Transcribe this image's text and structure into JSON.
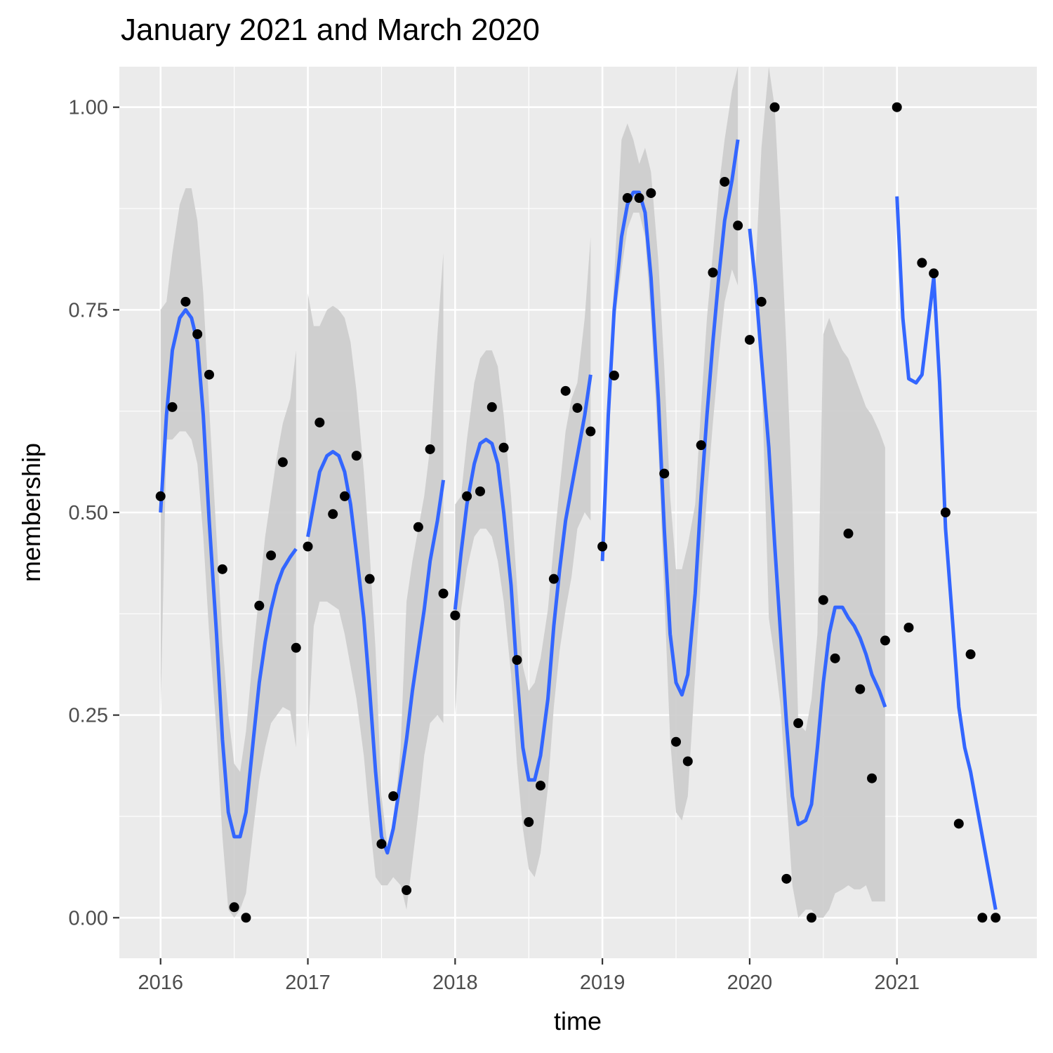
{
  "chart_data": {
    "type": "scatter",
    "title": "January 2021 and March 2020",
    "xlabel": "time",
    "ylabel": "membership",
    "xlim": [
      2015.72,
      2021.95
    ],
    "ylim": [
      -0.05,
      1.05
    ],
    "x_ticks": [
      2016,
      2017,
      2018,
      2019,
      2020,
      2021
    ],
    "x_tick_labels": [
      "2016",
      "2017",
      "2018",
      "2019",
      "2020",
      "2021"
    ],
    "y_ticks": [
      0.0,
      0.25,
      0.5,
      0.75,
      1.0
    ],
    "y_tick_labels": [
      "0.00",
      "0.25",
      "0.50",
      "0.75",
      "1.00"
    ],
    "grid": true,
    "colors": {
      "panel": "#ebebeb",
      "grid": "#ffffff",
      "points": "#000000",
      "smooth": "#3366ff",
      "ribbon": "#cccccc"
    },
    "points": [
      [
        2016.0,
        0.52
      ],
      [
        2016.08,
        0.63
      ],
      [
        2016.17,
        0.76
      ],
      [
        2016.25,
        0.72
      ],
      [
        2016.33,
        0.67
      ],
      [
        2016.42,
        0.43
      ],
      [
        2016.5,
        0.013
      ],
      [
        2016.58,
        0.0
      ],
      [
        2016.67,
        0.385
      ],
      [
        2016.75,
        0.447
      ],
      [
        2016.83,
        0.562
      ],
      [
        2016.92,
        0.333
      ],
      [
        2017.0,
        0.458
      ],
      [
        2017.08,
        0.611
      ],
      [
        2017.17,
        0.498
      ],
      [
        2017.25,
        0.52
      ],
      [
        2017.33,
        0.57
      ],
      [
        2017.42,
        0.418
      ],
      [
        2017.5,
        0.091
      ],
      [
        2017.58,
        0.15
      ],
      [
        2017.67,
        0.034
      ],
      [
        2017.75,
        0.482
      ],
      [
        2017.83,
        0.578
      ],
      [
        2017.92,
        0.4
      ],
      [
        2018.0,
        0.373
      ],
      [
        2018.08,
        0.52
      ],
      [
        2018.17,
        0.526
      ],
      [
        2018.25,
        0.63
      ],
      [
        2018.33,
        0.58
      ],
      [
        2018.42,
        0.318
      ],
      [
        2018.5,
        0.118
      ],
      [
        2018.58,
        0.163
      ],
      [
        2018.67,
        0.418
      ],
      [
        2018.75,
        0.65
      ],
      [
        2018.83,
        0.629
      ],
      [
        2018.92,
        0.6
      ],
      [
        2019.0,
        0.458
      ],
      [
        2019.08,
        0.669
      ],
      [
        2019.17,
        0.888
      ],
      [
        2019.25,
        0.888
      ],
      [
        2019.33,
        0.894
      ],
      [
        2019.42,
        0.548
      ],
      [
        2019.5,
        0.217
      ],
      [
        2019.58,
        0.193
      ],
      [
        2019.67,
        0.583
      ],
      [
        2019.75,
        0.796
      ],
      [
        2019.83,
        0.908
      ],
      [
        2019.92,
        0.854
      ],
      [
        2020.0,
        0.713
      ],
      [
        2020.08,
        0.76
      ],
      [
        2020.17,
        1.0
      ],
      [
        2020.25,
        0.048
      ],
      [
        2020.33,
        0.24
      ],
      [
        2020.42,
        0.0
      ],
      [
        2020.5,
        0.392
      ],
      [
        2020.58,
        0.32
      ],
      [
        2020.67,
        0.474
      ],
      [
        2020.75,
        0.282
      ],
      [
        2020.83,
        0.172
      ],
      [
        2020.92,
        0.342
      ],
      [
        2021.0,
        1.0
      ],
      [
        2021.08,
        0.358
      ],
      [
        2021.17,
        0.808
      ],
      [
        2021.25,
        0.795
      ],
      [
        2021.33,
        0.5
      ],
      [
        2021.42,
        0.116
      ],
      [
        2021.5,
        0.325
      ],
      [
        2021.58,
        0.0
      ],
      [
        2021.67,
        0.0
      ]
    ],
    "smooth_segments": [
      {
        "x": [
          2016.0,
          2016.04,
          2016.08,
          2016.13,
          2016.17,
          2016.21,
          2016.25,
          2016.29,
          2016.33,
          2016.38,
          2016.42,
          2016.46,
          2016.5,
          2016.54,
          2016.58,
          2016.63,
          2016.67,
          2016.71,
          2016.75,
          2016.79,
          2016.83,
          2016.88,
          2016.92
        ],
        "y": [
          0.5,
          0.62,
          0.7,
          0.74,
          0.75,
          0.74,
          0.71,
          0.62,
          0.49,
          0.35,
          0.22,
          0.13,
          0.1,
          0.1,
          0.13,
          0.22,
          0.29,
          0.34,
          0.38,
          0.41,
          0.43,
          0.445,
          0.455
        ],
        "lo": [
          0.25,
          0.59,
          0.59,
          0.6,
          0.6,
          0.59,
          0.56,
          0.47,
          0.35,
          0.23,
          0.1,
          0.01,
          0.0,
          0.01,
          0.03,
          0.11,
          0.17,
          0.21,
          0.24,
          0.25,
          0.26,
          0.255,
          0.21
        ],
        "hi": [
          0.75,
          0.76,
          0.82,
          0.88,
          0.9,
          0.9,
          0.86,
          0.77,
          0.63,
          0.47,
          0.34,
          0.25,
          0.19,
          0.18,
          0.23,
          0.33,
          0.4,
          0.47,
          0.52,
          0.57,
          0.61,
          0.64,
          0.7
        ]
      },
      {
        "x": [
          2017.0,
          2017.04,
          2017.08,
          2017.13,
          2017.17,
          2017.21,
          2017.25,
          2017.29,
          2017.33,
          2017.38,
          2017.42,
          2017.46,
          2017.5,
          2017.54,
          2017.58,
          2017.63,
          2017.67,
          2017.71,
          2017.75,
          2017.79,
          2017.83,
          2017.88,
          2017.92
        ],
        "y": [
          0.47,
          0.51,
          0.55,
          0.57,
          0.575,
          0.57,
          0.55,
          0.51,
          0.45,
          0.37,
          0.28,
          0.18,
          0.1,
          0.08,
          0.11,
          0.17,
          0.22,
          0.28,
          0.33,
          0.38,
          0.44,
          0.49,
          0.54
        ],
        "lo": [
          0.22,
          0.36,
          0.39,
          0.39,
          0.385,
          0.38,
          0.35,
          0.31,
          0.27,
          0.2,
          0.12,
          0.05,
          0.04,
          0.04,
          0.05,
          0.04,
          0.01,
          0.07,
          0.13,
          0.2,
          0.24,
          0.25,
          0.24
        ],
        "hi": [
          0.77,
          0.73,
          0.73,
          0.75,
          0.755,
          0.75,
          0.74,
          0.71,
          0.65,
          0.55,
          0.45,
          0.33,
          0.15,
          0.09,
          0.11,
          0.21,
          0.39,
          0.44,
          0.48,
          0.52,
          0.58,
          0.72,
          0.82
        ]
      },
      {
        "x": [
          2018.0,
          2018.04,
          2018.08,
          2018.13,
          2018.17,
          2018.21,
          2018.25,
          2018.29,
          2018.33,
          2018.38,
          2018.42,
          2018.46,
          2018.5,
          2018.54,
          2018.58,
          2018.63,
          2018.67,
          2018.71,
          2018.75,
          2018.79,
          2018.83,
          2018.88,
          2018.92
        ],
        "y": [
          0.38,
          0.45,
          0.51,
          0.56,
          0.585,
          0.59,
          0.585,
          0.56,
          0.5,
          0.41,
          0.3,
          0.21,
          0.17,
          0.17,
          0.2,
          0.27,
          0.36,
          0.43,
          0.49,
          0.53,
          0.57,
          0.62,
          0.67
        ],
        "lo": [
          0.25,
          0.38,
          0.43,
          0.47,
          0.48,
          0.48,
          0.47,
          0.44,
          0.39,
          0.3,
          0.19,
          0.11,
          0.06,
          0.05,
          0.08,
          0.16,
          0.26,
          0.33,
          0.38,
          0.42,
          0.48,
          0.5,
          0.49
        ],
        "hi": [
          0.51,
          0.52,
          0.59,
          0.66,
          0.69,
          0.7,
          0.7,
          0.68,
          0.62,
          0.52,
          0.41,
          0.31,
          0.28,
          0.29,
          0.32,
          0.38,
          0.46,
          0.53,
          0.6,
          0.64,
          0.66,
          0.74,
          0.84
        ]
      },
      {
        "x": [
          2019.0,
          2019.04,
          2019.08,
          2019.13,
          2019.17,
          2019.21,
          2019.25,
          2019.29,
          2019.33,
          2019.38,
          2019.42,
          2019.46,
          2019.5,
          2019.54,
          2019.58,
          2019.63,
          2019.67,
          2019.71,
          2019.75,
          2019.79,
          2019.83,
          2019.88,
          2019.92
        ],
        "y": [
          0.44,
          0.62,
          0.75,
          0.84,
          0.88,
          0.895,
          0.895,
          0.87,
          0.79,
          0.64,
          0.48,
          0.35,
          0.29,
          0.275,
          0.3,
          0.4,
          0.52,
          0.62,
          0.71,
          0.79,
          0.86,
          0.91,
          0.96
        ],
        "lo": [
          0.44,
          0.62,
          0.73,
          0.8,
          0.85,
          0.87,
          0.87,
          0.84,
          0.74,
          0.58,
          0.4,
          0.22,
          0.13,
          0.12,
          0.15,
          0.3,
          0.42,
          0.52,
          0.61,
          0.69,
          0.76,
          0.8,
          0.78
        ],
        "hi": [
          0.44,
          0.62,
          0.79,
          0.96,
          0.98,
          0.96,
          0.93,
          0.95,
          0.92,
          0.81,
          0.68,
          0.52,
          0.43,
          0.43,
          0.46,
          0.51,
          0.63,
          0.74,
          0.82,
          0.9,
          0.96,
          1.02,
          1.05
        ]
      },
      {
        "x": [
          2020.0,
          2020.04,
          2020.08,
          2020.13,
          2020.17,
          2020.21,
          2020.25,
          2020.29,
          2020.33,
          2020.38,
          2020.42,
          2020.46,
          2020.5,
          2020.54,
          2020.58,
          2020.63,
          2020.67,
          2020.71,
          2020.75,
          2020.79,
          2020.83,
          2020.88,
          2020.92
        ],
        "y": [
          0.85,
          0.78,
          0.69,
          0.58,
          0.46,
          0.35,
          0.24,
          0.15,
          0.115,
          0.12,
          0.14,
          0.21,
          0.29,
          0.35,
          0.383,
          0.383,
          0.37,
          0.36,
          0.345,
          0.325,
          0.3,
          0.28,
          0.26
        ],
        "lo": [
          0.85,
          0.78,
          0.68,
          0.37,
          0.32,
          0.26,
          0.15,
          0.04,
          0.0,
          0.01,
          0.01,
          0.0,
          0.0,
          0.01,
          0.03,
          0.035,
          0.04,
          0.035,
          0.035,
          0.04,
          0.02,
          0.02,
          0.02
        ],
        "hi": [
          0.85,
          0.8,
          0.95,
          1.06,
          1.0,
          0.86,
          0.7,
          0.51,
          0.24,
          0.23,
          0.27,
          0.35,
          0.72,
          0.74,
          0.72,
          0.7,
          0.69,
          0.67,
          0.65,
          0.63,
          0.62,
          0.6,
          0.58
        ]
      },
      {
        "x": [
          2021.0,
          2021.04,
          2021.08,
          2021.13,
          2021.17,
          2021.21,
          2021.25,
          2021.29,
          2021.33,
          2021.38,
          2021.42,
          2021.46,
          2021.5,
          2021.54,
          2021.58,
          2021.63,
          2021.67
        ],
        "y": [
          0.89,
          0.74,
          0.665,
          0.66,
          0.67,
          0.73,
          0.79,
          0.66,
          0.48,
          0.36,
          0.26,
          0.21,
          0.18,
          0.14,
          0.1,
          0.05,
          0.01
        ],
        "lo": [],
        "hi": []
      }
    ]
  }
}
